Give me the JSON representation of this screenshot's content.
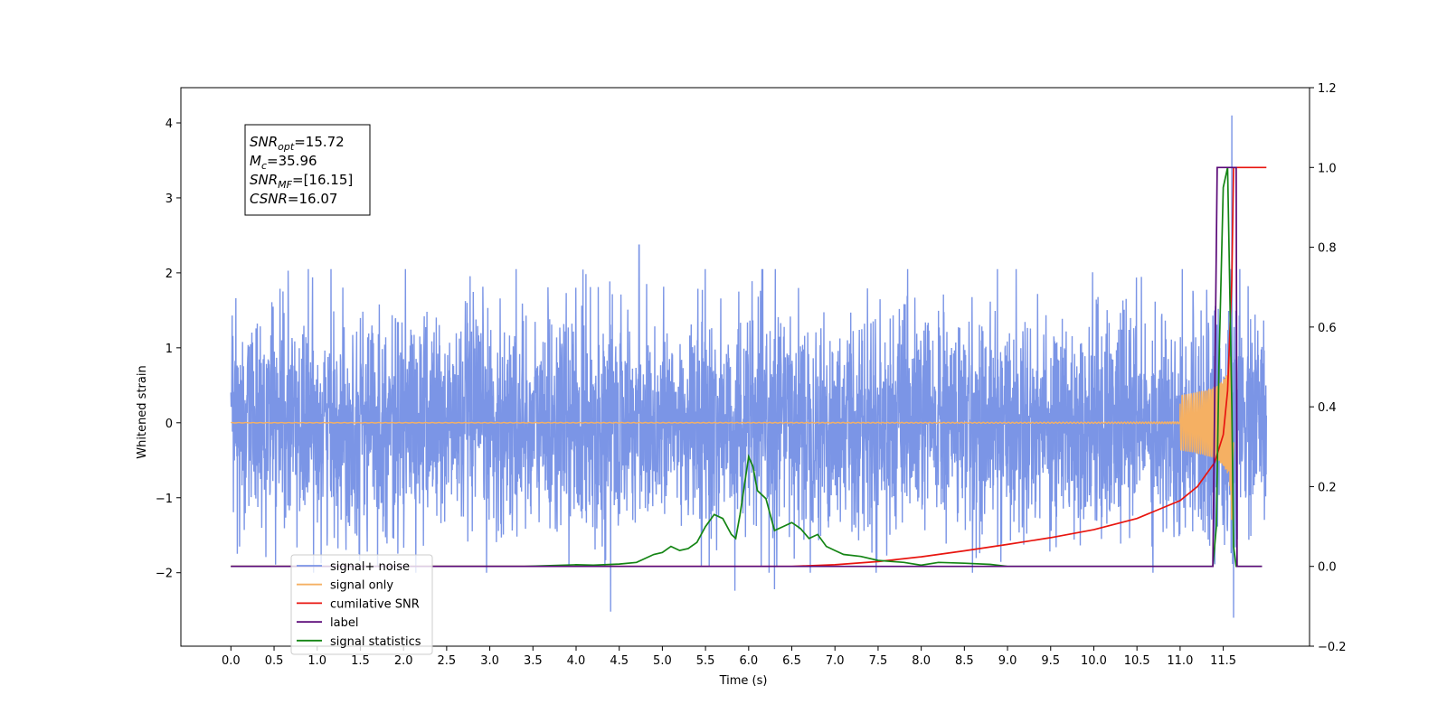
{
  "chart_data": {
    "type": "line",
    "xlabel": "Time (s)",
    "ylabel": "Whitened strain",
    "xlim": [
      -0.58,
      12.5
    ],
    "ylim": [
      -2.98,
      4.47
    ],
    "y2lim": [
      -0.2,
      1.2
    ],
    "x_ticks": [
      0.0,
      0.5,
      1.0,
      1.5,
      2.0,
      2.5,
      3.0,
      3.5,
      4.0,
      4.5,
      5.0,
      5.5,
      6.0,
      6.5,
      7.0,
      7.5,
      8.0,
      8.5,
      9.0,
      9.5,
      10.0,
      10.5,
      11.0,
      11.5
    ],
    "x_tick_labels": [
      "0.0",
      "0.5",
      "1.0",
      "1.5",
      "2.0",
      "2.5",
      "3.0",
      "3.5",
      "4.0",
      "4.5",
      "5.0",
      "5.5",
      "6.0",
      "6.5",
      "7.0",
      "7.5",
      "8.0",
      "8.5",
      "9.0",
      "9.5",
      "10.0",
      "10.5",
      "11.0",
      "11.5"
    ],
    "y_ticks": [
      -2,
      -1,
      0,
      1,
      2,
      3,
      4
    ],
    "y_tick_labels": [
      "−2",
      "−1",
      "0",
      "1",
      "2",
      "3",
      "4"
    ],
    "y2_ticks": [
      -0.2,
      0.0,
      0.2,
      0.4,
      0.6,
      0.8,
      1.0,
      1.2
    ],
    "y2_tick_labels": [
      "−0.2",
      "0.0",
      "0.2",
      "0.4",
      "0.6",
      "0.8",
      "1.0",
      "1.2"
    ],
    "grid": false,
    "legend_position": "lower-left",
    "annotation": {
      "lines": [
        {
          "main": "SNR",
          "sub": "opt",
          "rest": "=15.72"
        },
        {
          "main": "M",
          "sub": "c",
          "rest": "=35.96"
        },
        {
          "main": "SNR",
          "sub": "MF",
          "rest": "=[16.15]"
        },
        {
          "main": "CSNR",
          "sub": "",
          "rest": "=16.07"
        }
      ]
    },
    "series": [
      {
        "name": "signal+ noise",
        "color": "#7b95e6",
        "axis": "left",
        "style": "noise",
        "x_range": [
          0.0,
          12.0
        ],
        "noise_std": 0.72,
        "spike_peaks": [
          [
            4.73,
            2.37
          ],
          [
            11.6,
            4.1
          ],
          [
            4.4,
            -2.52
          ],
          [
            11.62,
            -2.6
          ],
          [
            5.84,
            -2.24
          ],
          [
            6.3,
            -2.22
          ]
        ]
      },
      {
        "name": "signal only",
        "color": "#f5b063",
        "axis": "left",
        "style": "chirp",
        "x_range": [
          0.0,
          11.62
        ],
        "merger_time": 11.6,
        "peak_amplitude": 1.3
      },
      {
        "name": "cumilative SNR",
        "color": "#e8150f",
        "axis": "right",
        "x": [
          0.0,
          6.5,
          7.0,
          7.5,
          8.0,
          8.5,
          9.0,
          9.5,
          10.0,
          10.5,
          11.0,
          11.2,
          11.4,
          11.5,
          11.55,
          11.6,
          11.62,
          12.0
        ],
        "y": [
          0.0,
          0.0,
          0.004,
          0.012,
          0.024,
          0.039,
          0.055,
          0.072,
          0.092,
          0.12,
          0.165,
          0.2,
          0.26,
          0.33,
          0.44,
          0.72,
          1.0,
          1.0
        ]
      },
      {
        "name": "label",
        "color": "#5b0a78",
        "axis": "right",
        "x": [
          0.0,
          11.38,
          11.43,
          11.65,
          11.66,
          11.95
        ],
        "y": [
          0.0,
          0.0,
          1.0,
          1.0,
          0.0,
          0.0
        ]
      },
      {
        "name": "signal statistics",
        "color": "#148514",
        "axis": "right",
        "x": [
          0.0,
          3.4,
          3.7,
          4.0,
          4.2,
          4.5,
          4.7,
          4.9,
          5.0,
          5.1,
          5.2,
          5.3,
          5.4,
          5.5,
          5.6,
          5.7,
          5.8,
          5.85,
          5.9,
          6.0,
          6.05,
          6.1,
          6.2,
          6.3,
          6.4,
          6.5,
          6.6,
          6.7,
          6.8,
          6.9,
          7.0,
          7.1,
          7.3,
          7.5,
          7.8,
          8.0,
          8.2,
          8.5,
          8.8,
          9.0,
          9.2,
          11.0,
          11.38,
          11.42,
          11.45,
          11.5,
          11.55,
          11.6,
          11.62,
          11.65,
          11.7,
          11.95
        ],
        "y": [
          0.0,
          0.0,
          0.002,
          0.004,
          0.003,
          0.006,
          0.01,
          0.03,
          0.035,
          0.05,
          0.04,
          0.045,
          0.06,
          0.1,
          0.13,
          0.12,
          0.08,
          0.07,
          0.13,
          0.275,
          0.25,
          0.19,
          0.17,
          0.09,
          0.1,
          0.11,
          0.095,
          0.07,
          0.08,
          0.05,
          0.04,
          0.03,
          0.025,
          0.015,
          0.01,
          0.003,
          0.01,
          0.008,
          0.005,
          0.0,
          0.0,
          0.0,
          0.0,
          0.1,
          0.5,
          0.95,
          1.0,
          0.4,
          0.05,
          0.0,
          0.0,
          0.0
        ]
      }
    ]
  }
}
